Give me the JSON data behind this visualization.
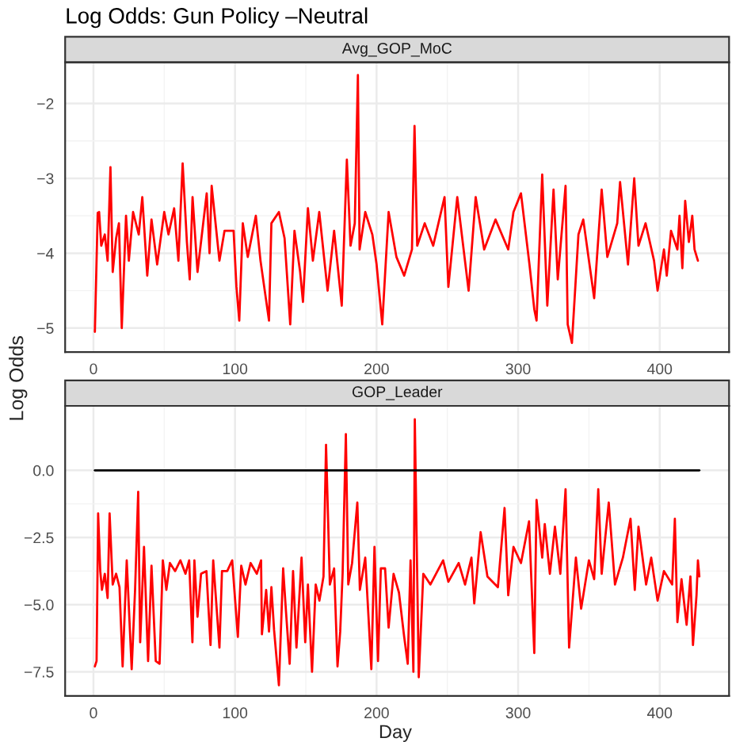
{
  "chart_data": [
    {
      "type": "line",
      "title": "Log Odds: Gun Policy –Neutral",
      "subtitle": "Avg_GOP_MoC",
      "ylabel": "Log Odds",
      "grid": true,
      "xlim": [
        -20,
        449
      ],
      "xticks": [
        0,
        100,
        200,
        300,
        400
      ],
      "ylim": [
        -5.32,
        -1.45
      ],
      "yticks": [
        {
          "value": -5,
          "label": "−5"
        },
        {
          "value": -4,
          "label": "−4"
        },
        {
          "value": -3,
          "label": "−3"
        },
        {
          "value": -2,
          "label": "−2"
        }
      ],
      "series": [
        {
          "color": "#ff0000",
          "x": [
            1,
            3,
            4,
            5.5,
            8,
            10,
            12,
            13.6,
            16,
            18,
            20,
            23,
            25,
            28,
            32,
            34.5,
            38,
            41,
            45,
            50,
            53,
            57,
            60,
            63,
            66,
            68,
            70,
            73.5,
            80,
            82,
            83.5,
            89,
            92.6,
            99,
            101,
            103,
            105.5,
            109,
            114.7,
            118,
            124,
            125.7,
            131,
            135,
            139,
            142,
            146,
            148,
            151.5,
            155,
            159.5,
            165.4,
            170,
            173.5,
            175.4,
            179,
            181.6,
            184.6,
            186.8,
            188,
            192,
            197,
            200,
            204,
            208.5,
            214,
            219.5,
            225,
            226.8,
            228.7,
            234,
            240,
            248,
            250.7,
            257,
            265,
            270,
            276,
            284,
            293,
            296.7,
            302,
            308,
            311.4,
            313,
            317,
            320.6,
            325,
            328,
            333.5,
            335,
            338,
            342.6,
            346,
            353.7,
            359,
            363,
            370,
            372,
            377.6,
            382,
            385,
            390,
            396,
            398.5,
            403,
            405,
            408,
            412.5,
            414,
            416,
            418,
            420.6,
            423,
            424.6,
            427
          ],
          "values": [
            -5.05,
            -3.46,
            -3.45,
            -3.9,
            -3.75,
            -4.1,
            -2.85,
            -4.25,
            -3.8,
            -3.6,
            -5.0,
            -3.5,
            -4.1,
            -3.45,
            -3.75,
            -3.25,
            -4.3,
            -3.55,
            -4.15,
            -3.45,
            -3.75,
            -3.4,
            -4.1,
            -2.8,
            -3.85,
            -4.35,
            -3.25,
            -4.25,
            -3.2,
            -4.0,
            -3.1,
            -4.1,
            -3.7,
            -3.7,
            -4.45,
            -4.9,
            -3.6,
            -4.05,
            -3.5,
            -4.1,
            -4.9,
            -3.6,
            -3.45,
            -3.8,
            -4.95,
            -3.7,
            -4.25,
            -4.65,
            -3.4,
            -4.1,
            -3.45,
            -4.5,
            -3.7,
            -4.35,
            -4.7,
            -2.75,
            -3.9,
            -3.6,
            -1.62,
            -3.95,
            -3.45,
            -3.75,
            -4.15,
            -4.95,
            -3.45,
            -4.05,
            -4.3,
            -3.95,
            -2.3,
            -3.9,
            -3.6,
            -3.9,
            -3.25,
            -4.45,
            -3.25,
            -4.5,
            -3.25,
            -3.95,
            -3.55,
            -3.95,
            -3.45,
            -3.2,
            -4.15,
            -4.75,
            -4.9,
            -2.95,
            -4.7,
            -3.15,
            -4.35,
            -3.1,
            -4.95,
            -5.2,
            -3.75,
            -3.55,
            -4.6,
            -3.15,
            -4.05,
            -3.6,
            -3.05,
            -4.15,
            -3.0,
            -3.9,
            -3.6,
            -4.1,
            -4.5,
            -3.95,
            -4.3,
            -3.7,
            -3.95,
            -3.5,
            -4.2,
            -3.3,
            -3.85,
            -3.5,
            -3.95,
            -4.1
          ]
        }
      ]
    },
    {
      "type": "line",
      "subtitle": "GOP_Leader",
      "xlabel": "Day",
      "grid": true,
      "xlim": [
        -20,
        449
      ],
      "xticks": [
        0,
        100,
        200,
        300,
        400
      ],
      "ylim": [
        -8.4,
        2.4
      ],
      "yticks": [
        {
          "value": -7.5,
          "label": "−7.5"
        },
        {
          "value": -5,
          "label": "−5.0"
        },
        {
          "value": -2.5,
          "label": "−2.5"
        },
        {
          "value": 0,
          "label": "0.0"
        }
      ],
      "series": [
        {
          "color": "#ff0000",
          "x": [
            1,
            2.2,
            3.3,
            4.8,
            6,
            8,
            10,
            11.4,
            13.6,
            16,
            18.4,
            20.6,
            23.5,
            27,
            29.4,
            31.6,
            33,
            35.7,
            38.6,
            41,
            44,
            46.7,
            49,
            51.5,
            54,
            57.7,
            61.4,
            65,
            67.6,
            69.9,
            71.3,
            73.5,
            76,
            79.8,
            82.7,
            84.6,
            89,
            90.8,
            94.5,
            98,
            102,
            104.4,
            107.4,
            111,
            115.4,
            118.4,
            119,
            122,
            124,
            125.7,
            127.6,
            131,
            134,
            136,
            138.6,
            141,
            143.4,
            147,
            149.6,
            151.5,
            154.4,
            157,
            159.6,
            162.5,
            164.3,
            167,
            170,
            172.4,
            174.3,
            176,
            178.3,
            180,
            182.7,
            186.4,
            188.2,
            192,
            196.3,
            198.5,
            201,
            203,
            206,
            208.5,
            212,
            215.8,
            219.5,
            222,
            224,
            226,
            227,
            229.8,
            233,
            238,
            247,
            250.7,
            258,
            262.5,
            267,
            269,
            273.5,
            278.3,
            285.7,
            290.4,
            293,
            296.7,
            302,
            307.7,
            311.4,
            313,
            317,
            318.8,
            322.4,
            326,
            329.8,
            333.5,
            336,
            340.8,
            344.5,
            350,
            353.7,
            356.6,
            359,
            364,
            368.4,
            374,
            379.4,
            382.4,
            385,
            390.4,
            394,
            398.5,
            403,
            408.8,
            410.7,
            412.5,
            415.4,
            419,
            421.7,
            423.5,
            426,
            427,
            428
          ],
          "values": [
            -7.3,
            -7.1,
            -1.6,
            -3.75,
            -4.45,
            -3.85,
            -4.75,
            -1.6,
            -4.25,
            -3.85,
            -4.35,
            -7.3,
            -3.35,
            -7.4,
            -4.45,
            -0.8,
            -6.4,
            -2.85,
            -7.1,
            -3.55,
            -7.1,
            -7.2,
            -3.35,
            -4.45,
            -3.45,
            -3.75,
            -3.35,
            -3.85,
            -3.35,
            -6.4,
            -3.35,
            -5.45,
            -3.85,
            -3.75,
            -6.5,
            -3.35,
            -6.6,
            -3.75,
            -3.75,
            -3.35,
            -6.2,
            -3.55,
            -4.25,
            -3.45,
            -3.85,
            -3.35,
            -6.1,
            -4.45,
            -6.0,
            -4.35,
            -5.95,
            -8.0,
            -3.65,
            -5.25,
            -7.2,
            -3.75,
            -6.6,
            -3.25,
            -6.4,
            -4.25,
            -7.5,
            -4.25,
            -4.85,
            -3.95,
            0.95,
            -4.25,
            -3.65,
            -7.3,
            -6.0,
            -3.85,
            1.35,
            -4.25,
            -3.45,
            -1.2,
            -4.45,
            -3.25,
            -7.4,
            -2.85,
            -7.1,
            -3.65,
            -3.65,
            -5.85,
            -3.85,
            -4.55,
            -6.2,
            -7.2,
            -3.35,
            -7.5,
            1.9,
            -7.7,
            -3.85,
            -4.25,
            -3.35,
            -4.15,
            -3.45,
            -4.25,
            -3.25,
            -4.95,
            -2.3,
            -3.95,
            -4.35,
            -1.4,
            -4.65,
            -2.85,
            -3.45,
            -1.9,
            -6.8,
            -1.1,
            -3.25,
            -2.0,
            -3.85,
            -2.1,
            -3.85,
            -0.7,
            -6.6,
            -3.25,
            -5.15,
            -3.35,
            -4.05,
            -0.7,
            -3.85,
            -1.2,
            -4.25,
            -3.25,
            -1.8,
            -4.45,
            -2.1,
            -4.25,
            -3.25,
            -4.85,
            -3.75,
            -4.25,
            -1.8,
            -5.65,
            -4.05,
            -5.75,
            -3.95,
            -6.5,
            -4.65,
            -3.35,
            -3.95
          ]
        },
        {
          "color": "#000000",
          "x": [
            1,
            428
          ],
          "values": [
            0,
            0
          ]
        }
      ]
    }
  ]
}
